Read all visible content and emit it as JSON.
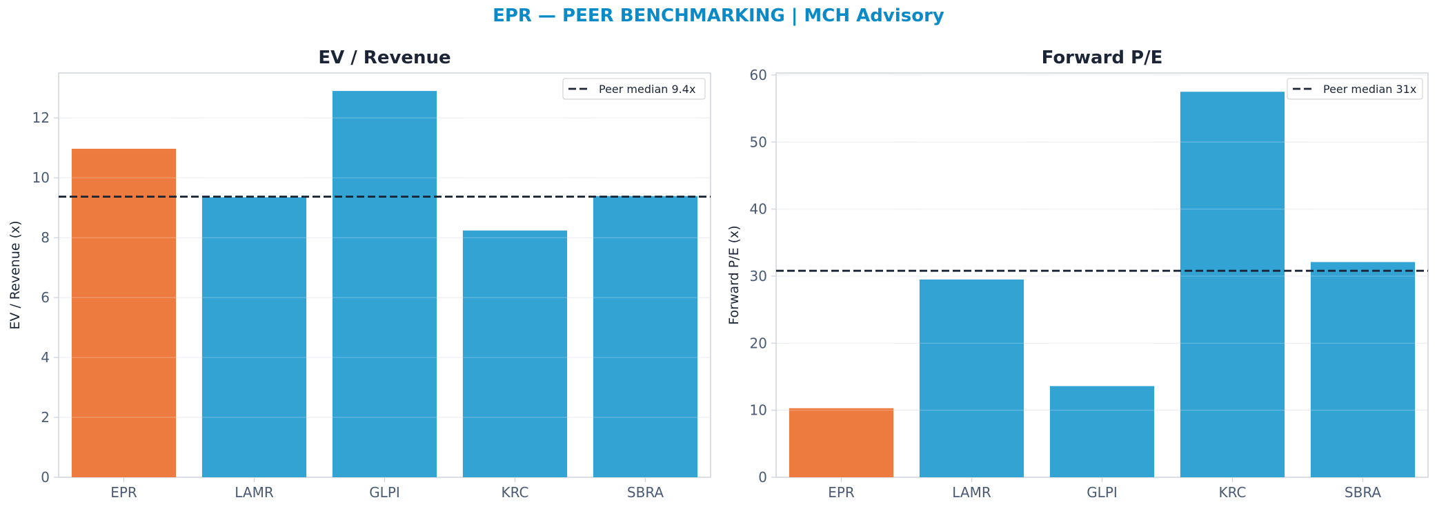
{
  "figure": {
    "suptitle": "EPR — PEER BENCHMARKING | MCH Advisory",
    "suptitle_color": "#0a8ac7"
  },
  "colors": {
    "highlight": "#ed7b3f",
    "peer": "#33a3d4",
    "median_line": "#1b2536",
    "title": "#1b2536",
    "tick_label": "#4a5a73",
    "axes_border": "#cfd4dc",
    "grid": "#eceef2"
  },
  "chart_data": [
    {
      "type": "bar",
      "title": "EV / Revenue",
      "xlabel": "",
      "ylabel": "EV / Revenue (x)",
      "categories": [
        "EPR",
        "LAMR",
        "GLPI",
        "KRC",
        "SBRA"
      ],
      "values": [
        10.97,
        9.35,
        12.9,
        8.24,
        9.39
      ],
      "highlight_category": "EPR",
      "ylim": [
        0,
        13.5
      ],
      "yticks": [
        0,
        2,
        4,
        6,
        8,
        10,
        12
      ],
      "ytick_labels": [
        "0",
        "2",
        "4",
        "6",
        "8",
        "10",
        "12"
      ],
      "grid": true,
      "reference_line": {
        "value": 9.37,
        "label": "Peer median 9.4x",
        "style": "dashed"
      },
      "legend_position": "top-right"
    },
    {
      "type": "bar",
      "title": "Forward P/E",
      "xlabel": "",
      "ylabel": "Forward P/E (x)",
      "categories": [
        "EPR",
        "LAMR",
        "GLPI",
        "KRC",
        "SBRA"
      ],
      "values": [
        10.3,
        29.5,
        13.6,
        57.5,
        32.1
      ],
      "highlight_category": "EPR",
      "ylim": [
        0,
        60.3
      ],
      "yticks": [
        0,
        10,
        20,
        30,
        40,
        50,
        60
      ],
      "ytick_labels": [
        "0",
        "10",
        "20",
        "30",
        "40",
        "50",
        "60"
      ],
      "grid": true,
      "reference_line": {
        "value": 30.8,
        "label": "Peer median 31x",
        "style": "dashed"
      },
      "legend_position": "top-right"
    }
  ]
}
